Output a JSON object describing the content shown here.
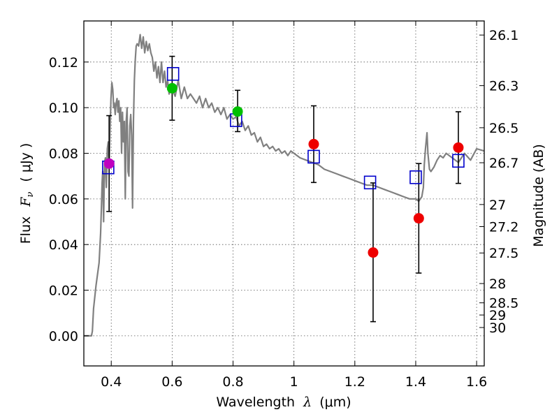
{
  "chart_data": {
    "type": "scatter",
    "xlabel_main": "Wavelength",
    "xlabel_symbol": "λ",
    "xlabel_unit": "(μm)",
    "ylabel_main": "Flux",
    "ylabel_symbol": "F",
    "ylabel_sub": "ν",
    "ylabel_unit": "( μJy )",
    "ylabel_right": "Magnitude (AB)",
    "xlim": [
      0.31,
      1.625
    ],
    "ylim": [
      -0.0132,
      0.138
    ],
    "x_ticks": [
      {
        "value": 0.4,
        "label": "0.4"
      },
      {
        "value": 0.6,
        "label": "0.6"
      },
      {
        "value": 0.8,
        "label": "0.8"
      },
      {
        "value": 1.0,
        "label": "1"
      },
      {
        "value": 1.2,
        "label": "1.2"
      },
      {
        "value": 1.4,
        "label": "1.4"
      },
      {
        "value": 1.6,
        "label": "1.6"
      }
    ],
    "y_ticks": [
      {
        "value": 0.0,
        "label": "0.00"
      },
      {
        "value": 0.02,
        "label": "0.02"
      },
      {
        "value": 0.04,
        "label": "0.04"
      },
      {
        "value": 0.06,
        "label": "0.06"
      },
      {
        "value": 0.08,
        "label": "0.08"
      },
      {
        "value": 0.1,
        "label": "0.10"
      },
      {
        "value": 0.12,
        "label": "0.12"
      }
    ],
    "mag_ticks": [
      {
        "mag": 26.1,
        "label": "26.1"
      },
      {
        "mag": 26.3,
        "label": "26.3"
      },
      {
        "mag": 26.5,
        "label": "26.5"
      },
      {
        "mag": 26.7,
        "label": "26.7"
      },
      {
        "mag": 27.0,
        "label": "27"
      },
      {
        "mag": 27.2,
        "label": "27.2"
      },
      {
        "mag": 27.5,
        "label": "27.5"
      },
      {
        "mag": 28.0,
        "label": "28"
      },
      {
        "mag": 28.5,
        "label": "28.5"
      },
      {
        "mag": 29.0,
        "label": "29"
      },
      {
        "mag": 30.0,
        "label": "30"
      }
    ],
    "grid": true,
    "colors": {
      "model": "#808080",
      "model_points": "#0000cc",
      "error_bars": "#000000",
      "obs_uv": "#bf00bf",
      "obs_optical": "#00bf00",
      "obs_ir": "#ee0000"
    },
    "model_sed": {
      "x": [
        0.31,
        0.335,
        0.338,
        0.342,
        0.35,
        0.36,
        0.365,
        0.368,
        0.37,
        0.372,
        0.375,
        0.378,
        0.381,
        0.384,
        0.387,
        0.39,
        0.393,
        0.396,
        0.399,
        0.402,
        0.405,
        0.408,
        0.41,
        0.413,
        0.416,
        0.419,
        0.422,
        0.425,
        0.428,
        0.431,
        0.434,
        0.437,
        0.44,
        0.443,
        0.446,
        0.449,
        0.452,
        0.455,
        0.458,
        0.461,
        0.464,
        0.467,
        0.47,
        0.473,
        0.476,
        0.479,
        0.482,
        0.485,
        0.49,
        0.495,
        0.5,
        0.505,
        0.51,
        0.515,
        0.52,
        0.525,
        0.53,
        0.535,
        0.54,
        0.545,
        0.55,
        0.555,
        0.56,
        0.565,
        0.57,
        0.575,
        0.58,
        0.585,
        0.59,
        0.595,
        0.6,
        0.61,
        0.62,
        0.63,
        0.64,
        0.65,
        0.66,
        0.67,
        0.68,
        0.69,
        0.7,
        0.71,
        0.72,
        0.73,
        0.74,
        0.75,
        0.76,
        0.77,
        0.78,
        0.79,
        0.8,
        0.81,
        0.82,
        0.83,
        0.84,
        0.85,
        0.86,
        0.87,
        0.88,
        0.89,
        0.9,
        0.91,
        0.92,
        0.93,
        0.94,
        0.95,
        0.96,
        0.97,
        0.98,
        0.99,
        1.0,
        1.02,
        1.04,
        1.06,
        1.08,
        1.1,
        1.12,
        1.14,
        1.16,
        1.18,
        1.2,
        1.22,
        1.24,
        1.26,
        1.28,
        1.3,
        1.32,
        1.34,
        1.36,
        1.38,
        1.4,
        1.41,
        1.42,
        1.425,
        1.428,
        1.432,
        1.437,
        1.44,
        1.445,
        1.45,
        1.46,
        1.47,
        1.48,
        1.49,
        1.5,
        1.52,
        1.54,
        1.56,
        1.58,
        1.6,
        1.625
      ],
      "y": [
        0.0,
        0.0,
        0.002,
        0.012,
        0.022,
        0.032,
        0.045,
        0.058,
        0.067,
        0.072,
        0.05,
        0.076,
        0.078,
        0.065,
        0.082,
        0.085,
        0.074,
        0.09,
        0.104,
        0.111,
        0.108,
        0.1,
        0.102,
        0.097,
        0.102,
        0.104,
        0.098,
        0.103,
        0.094,
        0.1,
        0.08,
        0.098,
        0.085,
        0.094,
        0.06,
        0.094,
        0.1,
        0.072,
        0.07,
        0.092,
        0.097,
        0.088,
        0.056,
        0.094,
        0.112,
        0.121,
        0.127,
        0.128,
        0.127,
        0.132,
        0.126,
        0.131,
        0.124,
        0.129,
        0.125,
        0.128,
        0.124,
        0.122,
        0.116,
        0.12,
        0.113,
        0.118,
        0.111,
        0.12,
        0.111,
        0.116,
        0.109,
        0.112,
        0.106,
        0.108,
        0.108,
        0.105,
        0.112,
        0.104,
        0.109,
        0.104,
        0.106,
        0.104,
        0.102,
        0.105,
        0.1,
        0.104,
        0.1,
        0.102,
        0.098,
        0.1,
        0.097,
        0.1,
        0.095,
        0.097,
        0.095,
        0.096,
        0.092,
        0.094,
        0.09,
        0.092,
        0.088,
        0.089,
        0.085,
        0.087,
        0.083,
        0.084,
        0.082,
        0.083,
        0.081,
        0.082,
        0.08,
        0.081,
        0.079,
        0.081,
        0.08,
        0.078,
        0.077,
        0.076,
        0.075,
        0.073,
        0.072,
        0.071,
        0.07,
        0.069,
        0.068,
        0.067,
        0.066,
        0.066,
        0.065,
        0.064,
        0.063,
        0.062,
        0.061,
        0.06,
        0.06,
        0.059,
        0.061,
        0.065,
        0.075,
        0.082,
        0.089,
        0.08,
        0.073,
        0.072,
        0.074,
        0.077,
        0.079,
        0.078,
        0.08,
        0.078,
        0.076,
        0.08,
        0.077,
        0.082,
        0.081
      ]
    },
    "model_points": [
      {
        "x": 0.39,
        "y": 0.0738
      },
      {
        "x": 0.603,
        "y": 0.1148
      },
      {
        "x": 0.81,
        "y": 0.0945
      },
      {
        "x": 1.065,
        "y": 0.0785
      },
      {
        "x": 1.25,
        "y": 0.0672
      },
      {
        "x": 1.4,
        "y": 0.0695
      },
      {
        "x": 1.54,
        "y": 0.0767
      }
    ],
    "observed": [
      {
        "band": "uv",
        "x": 0.393,
        "y": 0.0755,
        "yerr_low": 0.0545,
        "yerr_high": 0.0965
      },
      {
        "band": "optical",
        "x": 0.6,
        "y": 0.1085,
        "yerr_low": 0.0945,
        "yerr_high": 0.1225
      },
      {
        "band": "optical",
        "x": 0.815,
        "y": 0.0983,
        "yerr_low": 0.0895,
        "yerr_high": 0.1076
      },
      {
        "band": "ir",
        "x": 1.065,
        "y": 0.084,
        "yerr_low": 0.0672,
        "yerr_high": 0.1008
      },
      {
        "band": "ir",
        "x": 1.26,
        "y": 0.0365,
        "yerr_low": 0.0062,
        "yerr_high": 0.067
      },
      {
        "band": "ir",
        "x": 1.41,
        "y": 0.0515,
        "yerr_low": 0.0275,
        "yerr_high": 0.0755
      },
      {
        "band": "ir",
        "x": 1.54,
        "y": 0.0825,
        "yerr_low": 0.0668,
        "yerr_high": 0.0982
      }
    ]
  }
}
